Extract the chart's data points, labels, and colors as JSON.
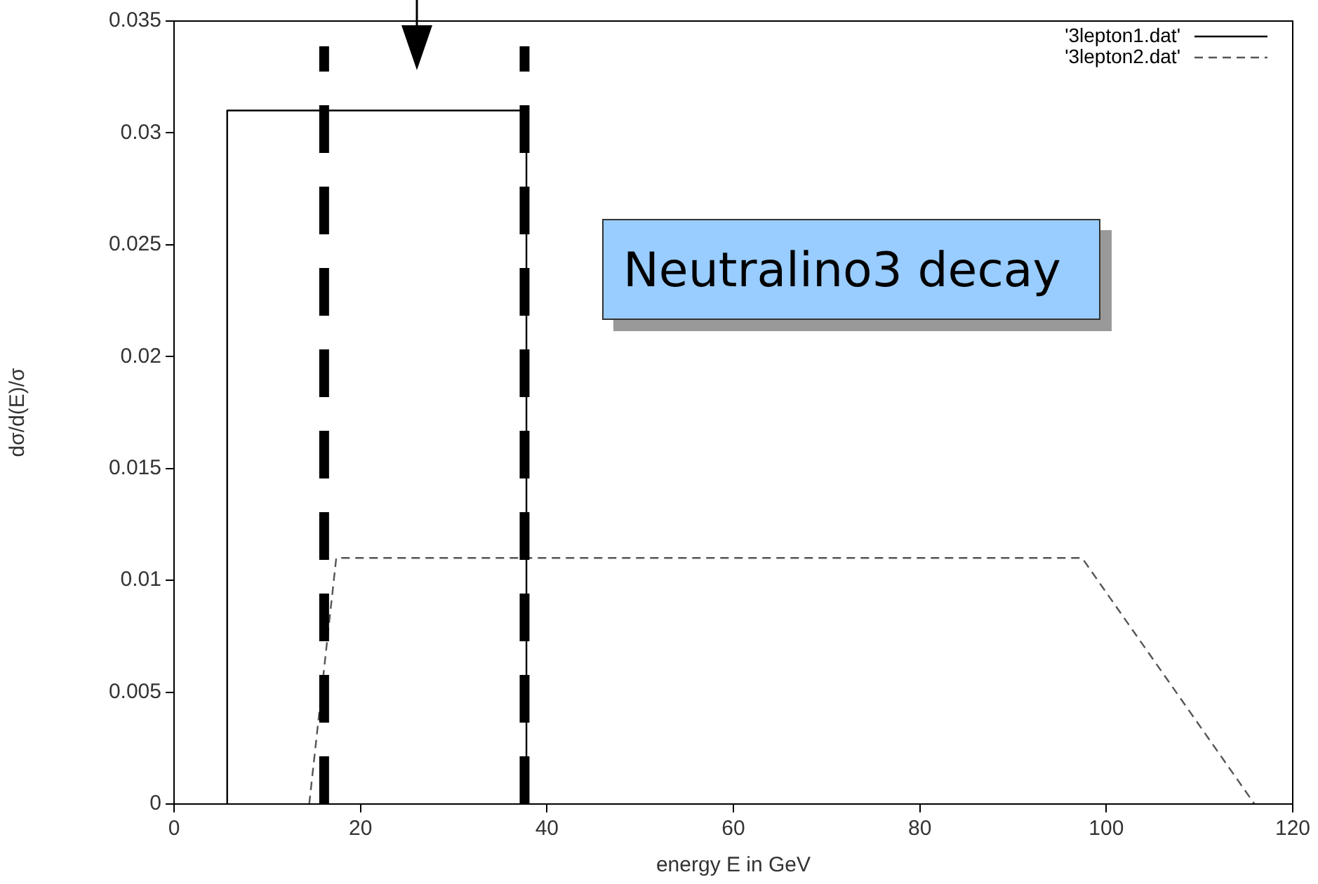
{
  "chart_data": {
    "type": "line",
    "xlabel": "energy E in GeV",
    "ylabel": "dσ/d(E)/σ",
    "xlim": [
      0,
      120
    ],
    "xticks": [
      0,
      20,
      40,
      60,
      80,
      100,
      120
    ],
    "ylim": [
      0,
      0.035
    ],
    "yticks": [
      0,
      0.005,
      0.01,
      0.015,
      0.02,
      0.025,
      0.03,
      0.035
    ],
    "legend": "top right",
    "marker": "none",
    "series": [
      {
        "name": "'3lepton1.dat'",
        "color": "#000000",
        "line_style": "solid",
        "x": [
          5.7,
          5.7,
          37.8,
          37.8
        ],
        "values": [
          0,
          0.031,
          0.031,
          0
        ]
      },
      {
        "name": "'3lepton2.dat'",
        "color": "#555555",
        "line_style": "dashed",
        "x": [
          14.5,
          17.4,
          97.4,
          115.9
        ],
        "values": [
          0,
          0.011,
          0.011,
          0
        ]
      }
    ],
    "ref_lines": [
      {
        "axis": "x",
        "value": 16.1,
        "color": "#000000",
        "line_style": "dashed"
      },
      {
        "axis": "x",
        "value": 37.6,
        "color": "#000000",
        "line_style": "dashed"
      }
    ],
    "annotations": [
      "Neutralino3 decay"
    ]
  }
}
